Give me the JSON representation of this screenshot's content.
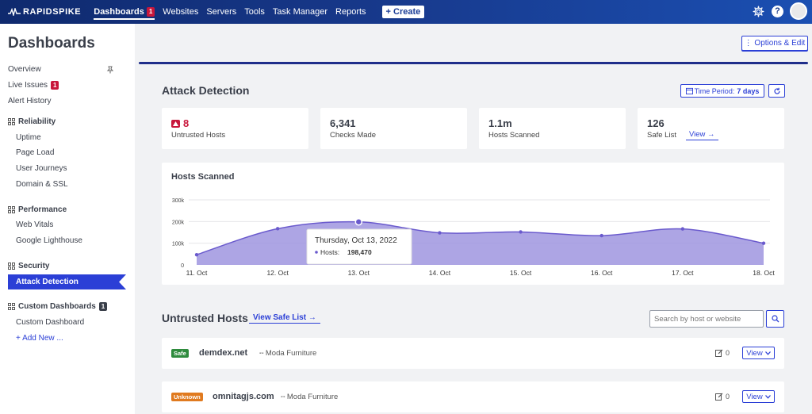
{
  "topbar": {
    "logo": "RAPIDSPIKE",
    "nav": [
      {
        "label": "Dashboards",
        "badge": "1"
      },
      {
        "label": "Websites"
      },
      {
        "label": "Servers"
      },
      {
        "label": "Tools"
      },
      {
        "label": "Task Manager"
      },
      {
        "label": "Reports"
      }
    ],
    "create_label": "+ Create",
    "help_label": "?"
  },
  "page": {
    "title": "Dashboards",
    "options_label": "⋮ Options & Edit"
  },
  "sidebar": {
    "overview": "Overview",
    "live_issues": "Live Issues",
    "live_issues_badge": "1",
    "alert_history": "Alert History",
    "reliability": "Reliability",
    "uptime": "Uptime",
    "page_load": "Page Load",
    "user_journeys": "User Journeys",
    "domain_ssl": "Domain & SSL",
    "performance": "Performance",
    "web_vitals": "Web Vitals",
    "google_lighthouse": "Google Lighthouse",
    "security": "Security",
    "attack_detection": "Attack Detection",
    "custom_dashboards": "Custom Dashboards",
    "custom_dashboards_badge": "1",
    "custom_dashboard": "Custom Dashboard",
    "add_new": "+ Add New ..."
  },
  "attack": {
    "title": "Attack Detection",
    "time_period_label": "Time Period:",
    "time_period_value": "7 days",
    "stats": [
      {
        "value": "8",
        "label": "Untrusted Hosts"
      },
      {
        "value": "6,341",
        "label": "Checks Made"
      },
      {
        "value": "1.1m",
        "label": "Hosts Scanned"
      },
      {
        "value": "126",
        "label": "Safe List",
        "link": "View →"
      }
    ]
  },
  "chart_data": {
    "type": "area",
    "title": "Hosts Scanned",
    "categories": [
      "11. Oct",
      "12. Oct",
      "13. Oct",
      "14. Oct",
      "15. Oct",
      "16. Oct",
      "17. Oct",
      "18. Oct"
    ],
    "series": [
      {
        "name": "Hosts",
        "values": [
          47000,
          167000,
          198470,
          148000,
          152000,
          135000,
          166000,
          100000
        ]
      }
    ],
    "y_ticks": [
      "0",
      "100k",
      "200k",
      "300k"
    ],
    "ylim": [
      0,
      300000
    ],
    "grid": true,
    "color": "#9f95df",
    "line_color": "#6a5acd",
    "tooltip": {
      "date": "Thursday, Oct 13, 2022",
      "label": "Hosts:",
      "value": "198,470",
      "index": 2
    }
  },
  "untrusted": {
    "title": "Untrusted Hosts",
    "safe_list_link": "View Safe List →",
    "search_placeholder": "Search by host or website",
    "rows": [
      {
        "tag": "Safe",
        "tag_color": "#2e8b3d",
        "host": "demdex.net",
        "org": "Moda Furniture",
        "notes": "0",
        "view": "View"
      },
      {
        "tag": "Unknown",
        "tag_color": "#e07a1f",
        "host": "omnitagjs.com",
        "org": "Moda Furniture",
        "notes": "0",
        "view": "View"
      }
    ]
  }
}
